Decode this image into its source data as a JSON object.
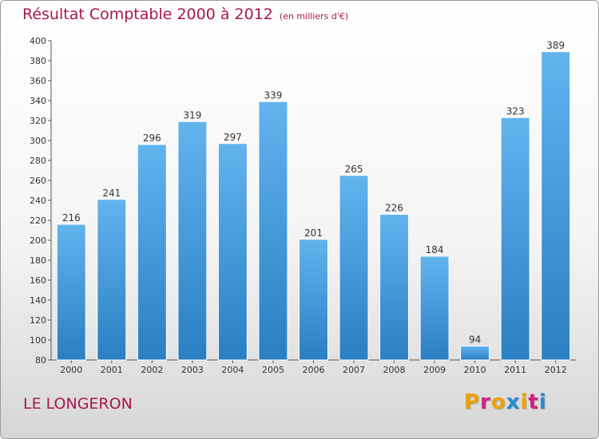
{
  "chart_data": {
    "type": "bar",
    "title": "Résultat Comptable 2000 à 2012",
    "subtitle": "(en milliers d'€)",
    "categories": [
      "2000",
      "2001",
      "2002",
      "2003",
      "2004",
      "2005",
      "2006",
      "2007",
      "2008",
      "2009",
      "2010",
      "2011",
      "2012"
    ],
    "values": [
      216,
      241,
      296,
      319,
      297,
      339,
      201,
      265,
      226,
      184,
      94,
      323,
      389
    ],
    "ylim": [
      80,
      400
    ],
    "yticks": [
      80,
      100,
      120,
      140,
      160,
      180,
      200,
      220,
      240,
      260,
      280,
      300,
      320,
      340,
      360,
      380,
      400
    ],
    "grid": false,
    "xlabel": "",
    "ylabel": ""
  },
  "footer": {
    "town": "LE LONGERON",
    "brand": [
      "P",
      "r",
      "o",
      "x",
      "i",
      "t",
      "i"
    ]
  },
  "colors": {
    "title": "#a8174f",
    "bar_top": "#62b4ee",
    "bar_bottom": "#2a7fc2",
    "brand": [
      "#f0a000",
      "#d02080",
      "#f0a000",
      "#2a8ad0",
      "#f0a000",
      "#d02080",
      "#2a8ad0"
    ]
  }
}
